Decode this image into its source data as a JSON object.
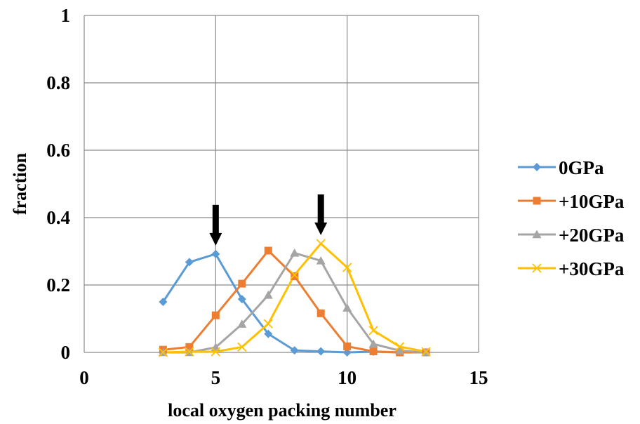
{
  "chart_data": {
    "type": "line",
    "title": "",
    "xlabel": "local oxygen packing number",
    "ylabel": "fraction",
    "xlim": [
      0,
      15
    ],
    "ylim": [
      0,
      1
    ],
    "x_ticks": [
      "0",
      "5",
      "10",
      "15"
    ],
    "y_ticks": [
      "0",
      "0.2",
      "0.4",
      "0.6",
      "0.8",
      "1"
    ],
    "grid": true,
    "legend_position": "right",
    "x": [
      3,
      4,
      5,
      6,
      7,
      8,
      9,
      10,
      11,
      12,
      13
    ],
    "series": [
      {
        "name": "0GPa",
        "color": "#5B9BD5",
        "marker": "diamond",
        "values": [
          0.15,
          0.268,
          0.292,
          0.158,
          0.055,
          0.006,
          0.003,
          0.0,
          0.002,
          0.0,
          0.0
        ]
      },
      {
        "name": "+10GPa",
        "color": "#ED7D31",
        "marker": "square",
        "values": [
          0.008,
          0.016,
          0.11,
          0.204,
          0.302,
          0.226,
          0.116,
          0.018,
          0.003,
          0.0,
          0.0
        ]
      },
      {
        "name": "+20GPa",
        "color": "#A5A5A5",
        "marker": "triangle",
        "values": [
          0.0,
          0.0,
          0.015,
          0.084,
          0.17,
          0.295,
          0.272,
          0.132,
          0.025,
          0.005,
          0.0
        ]
      },
      {
        "name": "+30GPa",
        "color": "#FFC000",
        "marker": "x",
        "values": [
          0.0,
          0.002,
          0.002,
          0.016,
          0.085,
          0.23,
          0.323,
          0.252,
          0.065,
          0.017,
          0.002
        ]
      }
    ],
    "annotations": [
      {
        "type": "arrow-down",
        "x": 5
      },
      {
        "type": "arrow-down",
        "x": 9
      }
    ]
  }
}
